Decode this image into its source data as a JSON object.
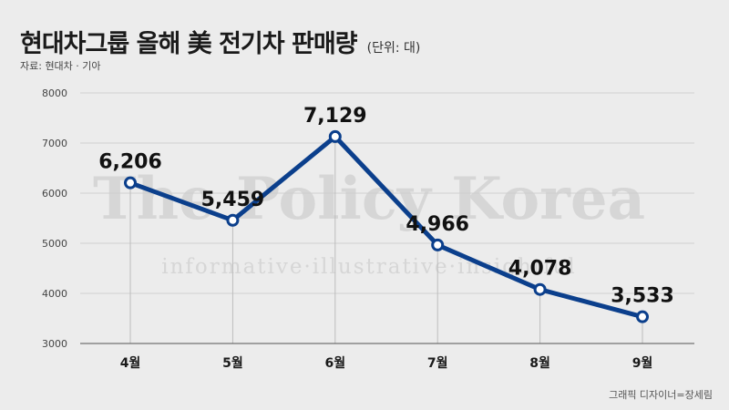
{
  "header": {
    "title": "현대차그룹 올해 美 전기차 판매량",
    "unit": "(단위: 대)",
    "source": "자료: 현대차 · 기아"
  },
  "watermark": {
    "main": "The Policy Korea",
    "sub": "informative·illustrative·insightful"
  },
  "footer": {
    "credit": "그래픽 디자이너=장세림"
  },
  "colors": {
    "line": "#0b3f8c",
    "background": "#ececec"
  },
  "chart_data": {
    "type": "line",
    "categories": [
      "4월",
      "5월",
      "6월",
      "7월",
      "8월",
      "9월"
    ],
    "values": [
      6206,
      5459,
      7129,
      4966,
      4078,
      3533
    ],
    "labels": [
      "6,206",
      "5,459",
      "7,129",
      "4,966",
      "4,078",
      "3,533"
    ],
    "yticks": [
      "8000",
      "7000",
      "6000",
      "5000",
      "4000",
      "3000"
    ],
    "ylim": [
      3000,
      8000
    ],
    "grid": true,
    "legend": "none"
  }
}
